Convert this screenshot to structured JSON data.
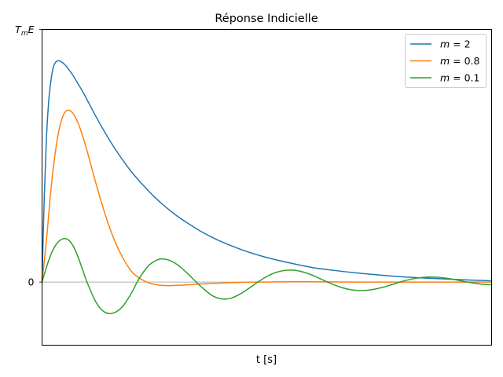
{
  "chart_data": {
    "type": "line",
    "title": "Réponse Indicielle",
    "xlabel": "t [s]",
    "ylabel": "",
    "xlim": [
      0,
      10
    ],
    "ylim": [
      -0.25,
      1.0
    ],
    "xticks": [],
    "yticks": [
      {
        "value": 0,
        "label": "0"
      },
      {
        "value": 1,
        "label": "T_mE",
        "main": "T",
        "sub": "m",
        "after": "E"
      }
    ],
    "zero_line": {
      "y": 0,
      "color": "#b0b0b0"
    },
    "grid": false,
    "legend": {
      "position": "top-right",
      "entries": [
        {
          "prefix": "m",
          "equals": " = ",
          "value": "2",
          "color": "#1f77b4"
        },
        {
          "prefix": "m",
          "equals": " = ",
          "value": "0.8",
          "color": "#ff7f0e"
        },
        {
          "prefix": "m",
          "equals": " = ",
          "value": "0.1",
          "color": "#2ca02c"
        }
      ]
    },
    "series": [
      {
        "name": "m = 2",
        "color": "#1f77b4",
        "x": [
          0,
          0.05,
          0.1,
          0.15,
          0.2,
          0.25,
          0.3,
          0.35,
          0.4,
          0.5,
          0.6,
          0.7,
          0.8,
          0.9,
          1.0,
          1.2,
          1.4,
          1.6,
          1.8,
          2.0,
          2.25,
          2.5,
          2.75,
          3.0,
          3.25,
          3.5,
          3.75,
          4.0,
          4.5,
          5.0,
          5.5,
          6.0,
          6.5,
          7.0,
          7.5,
          8.0,
          8.5,
          9.0,
          9.5,
          10.0
        ],
        "y": [
          0,
          0.34,
          0.58,
          0.72,
          0.8,
          0.85,
          0.87,
          0.876,
          0.875,
          0.862,
          0.84,
          0.815,
          0.785,
          0.755,
          0.722,
          0.655,
          0.592,
          0.534,
          0.482,
          0.434,
          0.383,
          0.337,
          0.297,
          0.262,
          0.232,
          0.204,
          0.18,
          0.159,
          0.124,
          0.097,
          0.076,
          0.058,
          0.046,
          0.036,
          0.028,
          0.021,
          0.016,
          0.012,
          0.008,
          0.005
        ]
      },
      {
        "name": "m = 0.8",
        "color": "#ff7f0e",
        "x": [
          0,
          0.1,
          0.2,
          0.3,
          0.4,
          0.5,
          0.6,
          0.7,
          0.8,
          0.9,
          1.0,
          1.1,
          1.2,
          1.4,
          1.6,
          1.8,
          2.0,
          2.2,
          2.4,
          2.6,
          2.8,
          3.0,
          3.25,
          3.5,
          4.0,
          4.5,
          5.0,
          5.5,
          6.0,
          7.0,
          8.0,
          9.0,
          10.0
        ],
        "y": [
          0,
          0.17,
          0.37,
          0.52,
          0.62,
          0.67,
          0.68,
          0.665,
          0.63,
          0.58,
          0.52,
          0.455,
          0.39,
          0.27,
          0.17,
          0.095,
          0.04,
          0.012,
          -0.005,
          -0.012,
          -0.014,
          -0.013,
          -0.011,
          -0.008,
          -0.004,
          -0.001,
          0.0,
          0.001,
          0.001,
          0.0,
          0.0,
          0.0,
          0.0
        ]
      },
      {
        "name": "m = 0.1",
        "color": "#2ca02c",
        "x": [
          0,
          0.1,
          0.2,
          0.3,
          0.4,
          0.5,
          0.6,
          0.7,
          0.8,
          0.9,
          1.0,
          1.2,
          1.4,
          1.6,
          1.8,
          2.0,
          2.1,
          2.2,
          2.3,
          2.4,
          2.6,
          2.8,
          3.0,
          3.2,
          3.4,
          3.6,
          3.8,
          4.0,
          4.2,
          4.4,
          4.6,
          4.8,
          5.0,
          5.2,
          5.4,
          5.6,
          5.8,
          6.0,
          6.2,
          6.4,
          6.6,
          6.8,
          7.0,
          7.2,
          7.4,
          7.6,
          7.8,
          8.0,
          8.2,
          8.4,
          8.6,
          8.8,
          9.0,
          9.2,
          9.4,
          9.6,
          9.8,
          10.0
        ],
        "y": [
          0,
          0.06,
          0.11,
          0.145,
          0.165,
          0.172,
          0.165,
          0.14,
          0.1,
          0.05,
          0.0,
          -0.08,
          -0.12,
          -0.122,
          -0.095,
          -0.04,
          -0.005,
          0.025,
          0.05,
          0.07,
          0.09,
          0.088,
          0.07,
          0.04,
          0.005,
          -0.028,
          -0.055,
          -0.067,
          -0.064,
          -0.048,
          -0.025,
          0.0,
          0.022,
          0.038,
          0.046,
          0.047,
          0.04,
          0.028,
          0.012,
          -0.004,
          -0.018,
          -0.028,
          -0.033,
          -0.033,
          -0.028,
          -0.02,
          -0.009,
          0.002,
          0.011,
          0.017,
          0.02,
          0.019,
          0.015,
          0.009,
          0.002,
          -0.004,
          -0.009,
          -0.011
        ]
      }
    ]
  }
}
